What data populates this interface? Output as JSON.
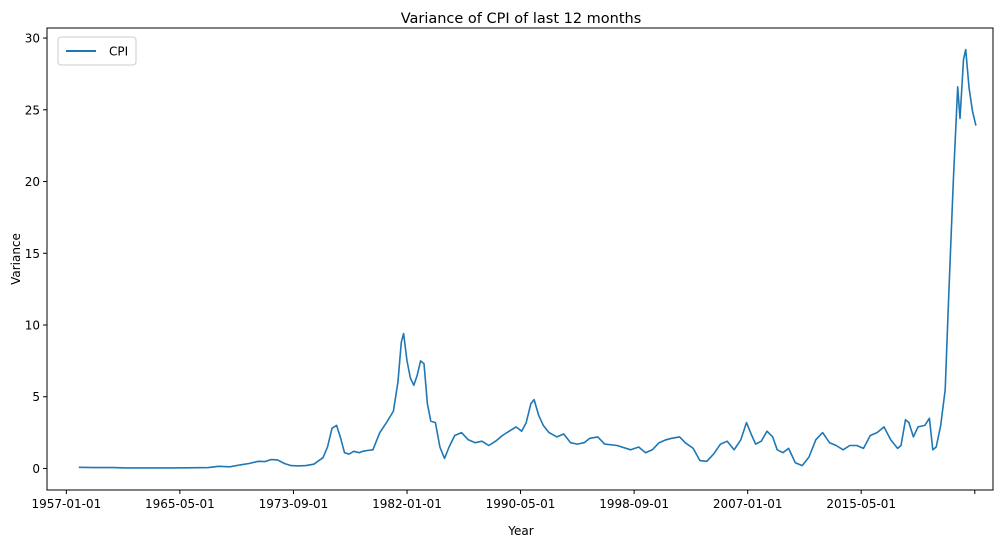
{
  "chart_data": {
    "type": "line",
    "title": "Variance of CPI of last 12 months",
    "xlabel": "Year",
    "ylabel": "Variance",
    "ylim": [
      -1.5,
      30.7
    ],
    "xlim": [
      "1955-08-01",
      "2025-01-01"
    ],
    "x_ticks": [
      "1957-01-01",
      "1965-05-01",
      "1973-09-01",
      "1982-01-01",
      "1990-05-01",
      "1998-09-01",
      "2007-01-01",
      "2015-05-01",
      "2023-09-01"
    ],
    "x_tick_labels": [
      "1957-01-01",
      "1965-05-01",
      "1973-09-01",
      "1982-01-01",
      "1990-05-01",
      "1998-09-01",
      "2007-01-01",
      "2015-05-01",
      ""
    ],
    "y_ticks": [
      0,
      5,
      10,
      15,
      20,
      25,
      30
    ],
    "y_tick_labels": [
      "0",
      "5",
      "10",
      "15",
      "20",
      "25",
      "30"
    ],
    "grid": false,
    "legend": {
      "position": "top-left",
      "entries": [
        "CPI"
      ]
    },
    "series": [
      {
        "name": "CPI",
        "color": "#1f77b4",
        "points": [
          [
            "1957-12-01",
            0.08
          ],
          [
            "1959-01-01",
            0.06
          ],
          [
            "1960-06-01",
            0.06
          ],
          [
            "1961-06-01",
            0.04
          ],
          [
            "1963-01-01",
            0.04
          ],
          [
            "1964-09-01",
            0.04
          ],
          [
            "1965-11-01",
            0.05
          ],
          [
            "1967-06-01",
            0.06
          ],
          [
            "1968-03-01",
            0.15
          ],
          [
            "1969-01-01",
            0.12
          ],
          [
            "1969-10-01",
            0.25
          ],
          [
            "1970-06-01",
            0.35
          ],
          [
            "1971-02-01",
            0.5
          ],
          [
            "1971-08-01",
            0.48
          ],
          [
            "1972-01-01",
            0.62
          ],
          [
            "1972-07-01",
            0.6
          ],
          [
            "1973-01-01",
            0.35
          ],
          [
            "1973-07-01",
            0.2
          ],
          [
            "1974-01-01",
            0.18
          ],
          [
            "1974-08-01",
            0.2
          ],
          [
            "1975-03-01",
            0.3
          ],
          [
            "1975-11-01",
            0.75
          ],
          [
            "1976-03-01",
            1.5
          ],
          [
            "1976-07-01",
            2.8
          ],
          [
            "1976-11-01",
            3.0
          ],
          [
            "1977-03-01",
            2.0
          ],
          [
            "1977-06-01",
            1.1
          ],
          [
            "1977-10-01",
            1.0
          ],
          [
            "1978-02-01",
            1.2
          ],
          [
            "1978-07-01",
            1.1
          ],
          [
            "1978-10-01",
            1.2
          ],
          [
            "1979-02-01",
            1.25
          ],
          [
            "1979-07-01",
            1.3
          ],
          [
            "1980-01-01",
            2.5
          ],
          [
            "1980-07-01",
            3.2
          ],
          [
            "1981-01-01",
            4.0
          ],
          [
            "1981-05-01",
            6.0
          ],
          [
            "1981-08-01",
            8.8
          ],
          [
            "1981-10-01",
            9.4
          ],
          [
            "1982-01-01",
            7.5
          ],
          [
            "1982-04-01",
            6.3
          ],
          [
            "1982-07-01",
            5.8
          ],
          [
            "1982-10-01",
            6.5
          ],
          [
            "1983-01-01",
            7.5
          ],
          [
            "1983-04-01",
            7.3
          ],
          [
            "1983-07-01",
            4.5
          ],
          [
            "1983-10-01",
            3.3
          ],
          [
            "1984-02-01",
            3.2
          ],
          [
            "1984-06-01",
            1.5
          ],
          [
            "1984-10-01",
            0.7
          ],
          [
            "1985-02-01",
            1.5
          ],
          [
            "1985-07-01",
            2.3
          ],
          [
            "1986-01-01",
            2.5
          ],
          [
            "1986-07-01",
            2.0
          ],
          [
            "1987-01-01",
            1.8
          ],
          [
            "1987-07-01",
            1.9
          ],
          [
            "1988-01-01",
            1.6
          ],
          [
            "1988-07-01",
            1.9
          ],
          [
            "1989-01-01",
            2.3
          ],
          [
            "1989-07-01",
            2.6
          ],
          [
            "1990-01-01",
            2.9
          ],
          [
            "1990-06-01",
            2.6
          ],
          [
            "1990-10-01",
            3.2
          ],
          [
            "1991-02-01",
            4.5
          ],
          [
            "1991-05-01",
            4.8
          ],
          [
            "1991-09-01",
            3.7
          ],
          [
            "1992-01-01",
            3.0
          ],
          [
            "1992-06-01",
            2.5
          ],
          [
            "1993-01-01",
            2.2
          ],
          [
            "1993-07-01",
            2.4
          ],
          [
            "1994-01-01",
            1.8
          ],
          [
            "1994-07-01",
            1.7
          ],
          [
            "1995-01-01",
            1.8
          ],
          [
            "1995-06-01",
            2.1
          ],
          [
            "1996-01-01",
            2.2
          ],
          [
            "1996-07-01",
            1.7
          ],
          [
            "1997-06-01",
            1.6
          ],
          [
            "1998-06-01",
            1.3
          ],
          [
            "1999-01-01",
            1.5
          ],
          [
            "1999-07-01",
            1.1
          ],
          [
            "2000-01-01",
            1.3
          ],
          [
            "2000-07-01",
            1.8
          ],
          [
            "2001-01-01",
            2.0
          ],
          [
            "2001-06-01",
            2.1
          ],
          [
            "2002-01-01",
            2.2
          ],
          [
            "2002-06-01",
            1.8
          ],
          [
            "2003-01-01",
            1.4
          ],
          [
            "2003-07-01",
            0.55
          ],
          [
            "2004-01-01",
            0.5
          ],
          [
            "2004-07-01",
            1.0
          ],
          [
            "2005-01-01",
            1.7
          ],
          [
            "2005-07-01",
            1.9
          ],
          [
            "2006-01-01",
            1.3
          ],
          [
            "2006-07-01",
            2.0
          ],
          [
            "2006-12-01",
            3.2
          ],
          [
            "2007-04-01",
            2.4
          ],
          [
            "2007-08-01",
            1.7
          ],
          [
            "2008-01-01",
            1.9
          ],
          [
            "2008-06-01",
            2.6
          ],
          [
            "2008-11-01",
            2.2
          ],
          [
            "2009-03-01",
            1.3
          ],
          [
            "2009-08-01",
            1.1
          ],
          [
            "2010-01-01",
            1.4
          ],
          [
            "2010-07-01",
            0.4
          ],
          [
            "2011-01-01",
            0.2
          ],
          [
            "2011-07-01",
            0.8
          ],
          [
            "2012-01-01",
            2.0
          ],
          [
            "2012-07-01",
            2.5
          ],
          [
            "2013-01-01",
            1.8
          ],
          [
            "2013-07-01",
            1.6
          ],
          [
            "2014-01-01",
            1.3
          ],
          [
            "2014-07-01",
            1.6
          ],
          [
            "2015-01-01",
            1.6
          ],
          [
            "2015-07-01",
            1.4
          ],
          [
            "2016-01-01",
            2.3
          ],
          [
            "2016-07-01",
            2.5
          ],
          [
            "2017-01-01",
            2.9
          ],
          [
            "2017-07-01",
            2.0
          ],
          [
            "2018-01-01",
            1.4
          ],
          [
            "2018-04-01",
            1.6
          ],
          [
            "2018-08-01",
            3.4
          ],
          [
            "2018-11-01",
            3.2
          ],
          [
            "2019-03-01",
            2.2
          ],
          [
            "2019-07-01",
            2.9
          ],
          [
            "2020-01-01",
            3.0
          ],
          [
            "2020-05-01",
            3.5
          ],
          [
            "2020-08-01",
            1.3
          ],
          [
            "2020-11-01",
            1.5
          ],
          [
            "2021-03-01",
            3.0
          ],
          [
            "2021-07-01",
            5.5
          ],
          [
            "2021-10-01",
            12.0
          ],
          [
            "2022-02-01",
            20.0
          ],
          [
            "2022-06-01",
            26.6
          ],
          [
            "2022-08-01",
            24.4
          ],
          [
            "2022-11-01",
            28.5
          ],
          [
            "2023-01-01",
            29.2
          ],
          [
            "2023-04-01",
            26.5
          ],
          [
            "2023-07-01",
            24.9
          ],
          [
            "2023-10-01",
            23.9
          ]
        ]
      }
    ]
  }
}
